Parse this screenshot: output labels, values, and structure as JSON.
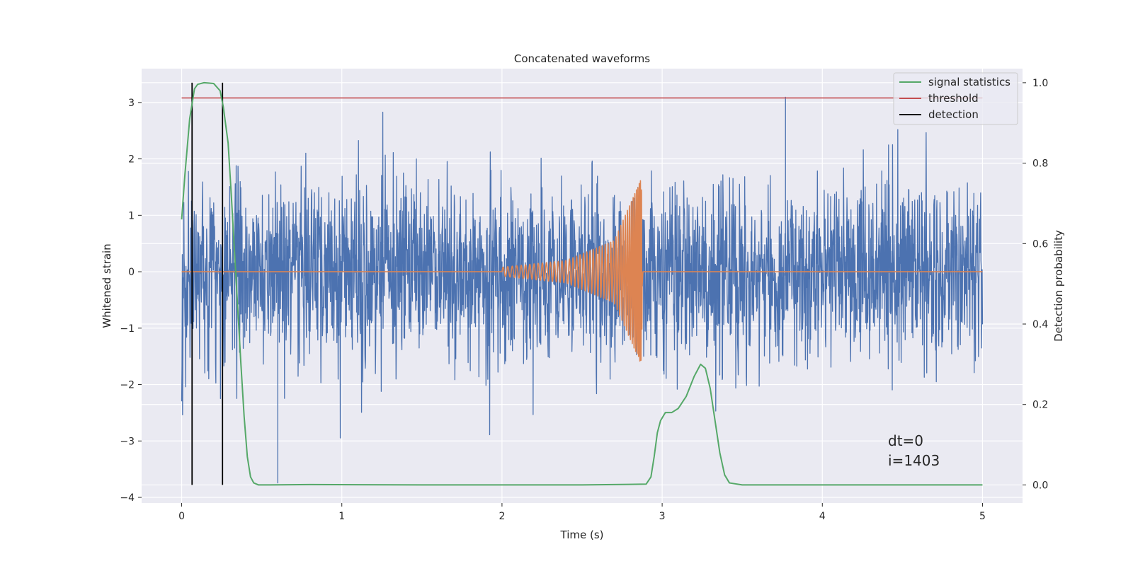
{
  "chart_data": {
    "type": "line",
    "title": "Concatenated waveforms",
    "xlabel": "Time (s)",
    "ylabel": "Whitened strain",
    "ylabel_right": "Detection probability",
    "xlim": [
      -0.25,
      5.25
    ],
    "ylim": [
      -4.1,
      3.6
    ],
    "ylim_right": [
      -0.045,
      1.035
    ],
    "xticks": [
      0,
      1,
      2,
      3,
      4,
      5
    ],
    "yticks": [
      -4,
      -3,
      -2,
      -1,
      0,
      1,
      2,
      3
    ],
    "yticks_right": [
      0.0,
      0.2,
      0.4,
      0.6,
      0.8,
      1.0
    ],
    "grid": true,
    "legend_position": "top-right",
    "legend": [
      {
        "label": "signal statistics",
        "color": "#55a868"
      },
      {
        "label": "threshold",
        "color": "#c44e52"
      },
      {
        "label": "detection",
        "color": "#000000"
      }
    ],
    "series": [
      {
        "axis": "left",
        "color": "#4c72b0",
        "description": "whitened noisy strain, approx. Gaussian noise std 0.8 over 0 to 5 s",
        "x_range": [
          0,
          5
        ],
        "noise_std": 0.8,
        "peak_values": [
          {
            "x": 0.6,
            "y": -3.75
          },
          {
            "x": 3.77,
            "y": 3.1
          }
        ]
      },
      {
        "axis": "left",
        "color": "#dd8452",
        "description": "chirp waveform, zero except between 2.0 s and 2.88 s",
        "x": [
          0,
          2.0,
          2.4,
          2.7,
          2.87,
          2.88,
          5.0
        ],
        "amplitude": [
          0,
          0.08,
          0.2,
          0.55,
          1.65,
          0,
          0
        ]
      },
      {
        "name": "signal statistics",
        "axis": "right",
        "color": "#55a868",
        "x": [
          0.0,
          0.02,
          0.05,
          0.08,
          0.1,
          0.14,
          0.2,
          0.24,
          0.26,
          0.29,
          0.31,
          0.33,
          0.35,
          0.37,
          0.39,
          0.41,
          0.43,
          0.45,
          0.48,
          0.55,
          0.8,
          1.5,
          2.5,
          2.9,
          2.93,
          2.95,
          2.97,
          2.99,
          3.02,
          3.06,
          3.1,
          3.15,
          3.2,
          3.24,
          3.27,
          3.3,
          3.33,
          3.36,
          3.39,
          3.42,
          3.5,
          4.0,
          5.0
        ],
        "y": [
          0.66,
          0.77,
          0.91,
          0.985,
          0.996,
          1.0,
          0.998,
          0.98,
          0.94,
          0.85,
          0.72,
          0.58,
          0.44,
          0.3,
          0.17,
          0.07,
          0.02,
          0.005,
          0.0,
          0.0,
          0.001,
          0.0,
          0.0,
          0.002,
          0.02,
          0.07,
          0.13,
          0.16,
          0.18,
          0.18,
          0.19,
          0.22,
          0.27,
          0.3,
          0.29,
          0.24,
          0.16,
          0.08,
          0.025,
          0.005,
          0.0,
          0.0,
          0.0
        ]
      },
      {
        "name": "threshold",
        "axis": "left",
        "color": "#c44e52",
        "x": [
          0,
          5
        ],
        "y": [
          3.08,
          3.08
        ]
      },
      {
        "name": "detection",
        "axis": "right",
        "color": "#000000",
        "type": "vlines",
        "x": [
          0.065,
          0.255
        ],
        "ymin": 0.0,
        "ymax": 1.0
      }
    ],
    "annotations": [
      "dt=0",
      "i=1403"
    ]
  }
}
